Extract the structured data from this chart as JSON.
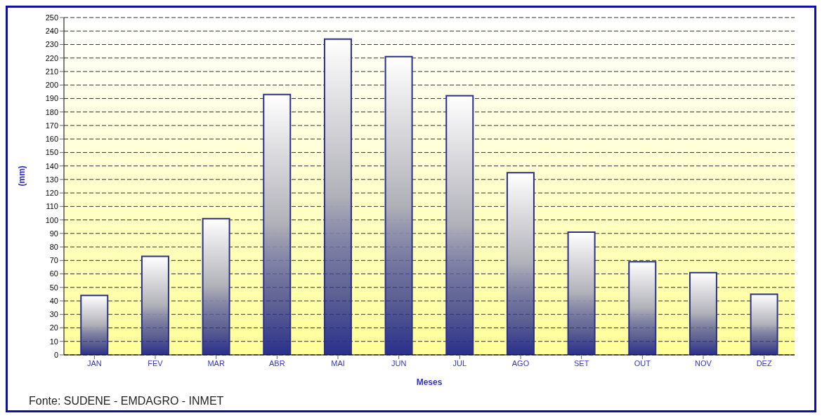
{
  "chart_data": {
    "type": "bar",
    "xlabel": "Meses",
    "ylabel": "(mm)",
    "categories": [
      "JAN",
      "FEV",
      "MAR",
      "ABR",
      "MAI",
      "JUN",
      "JUL",
      "AGO",
      "SET",
      "OUT",
      "NOV",
      "DEZ"
    ],
    "values": [
      44,
      73,
      101,
      193,
      234,
      221,
      192,
      135,
      91,
      69,
      61,
      45
    ],
    "color": "#2a2f8c",
    "ylim": [
      0,
      250
    ],
    "yticks": [
      0,
      10,
      20,
      30,
      40,
      50,
      60,
      70,
      80,
      90,
      100,
      110,
      120,
      130,
      140,
      150,
      160,
      170,
      180,
      190,
      200,
      210,
      220,
      230,
      240,
      250
    ],
    "grid": "y",
    "annotations": [
      "Fonte: SUDENE - EMDAGRO - INMET"
    ]
  }
}
